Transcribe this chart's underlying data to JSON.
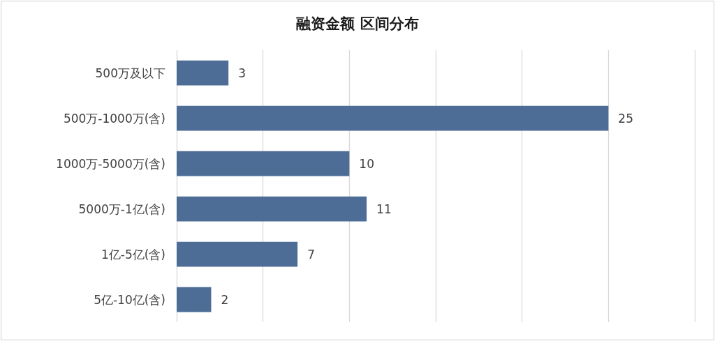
{
  "chart_data": {
    "type": "bar",
    "orientation": "horizontal",
    "title": "融资金额 区间分布",
    "categories": [
      "500万及以下",
      "500万-1000万(含)",
      "1000万-5000万(含)",
      "5000万-1亿(含)",
      "1亿-5亿(含)",
      "5亿-10亿(含)"
    ],
    "values": [
      3,
      25,
      10,
      11,
      7,
      2
    ],
    "color": "#4d6d97",
    "xlim": [
      0,
      30
    ],
    "xticks": [
      {
        "value": 0,
        "label": null
      },
      {
        "value": 5,
        "label": null
      },
      {
        "value": 10,
        "label": null
      },
      {
        "value": 15,
        "label": null
      },
      {
        "value": 20,
        "label": null
      },
      {
        "value": 25,
        "label": null
      },
      {
        "value": 30,
        "label": null
      }
    ],
    "grid": "x",
    "tick_labels": "y",
    "data_labels": true
  }
}
